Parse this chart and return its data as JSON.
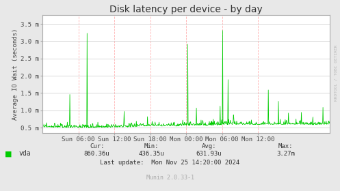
{
  "title": "Disk latency per device - by day",
  "ylabel": "Average IO Wait (seconds)",
  "bg_color": "#e8e8e8",
  "plot_bg_color": "#ffffff",
  "line_color": "#00cc00",
  "grid_color_h": "#cccccc",
  "grid_color_v": "#ffaaaa",
  "border_color": "#aaaaaa",
  "x_tick_labels": [
    "Sun 06:00",
    "Sun 12:00",
    "Sun 18:00",
    "Mon 00:00",
    "Mon 06:00",
    "Mon 12:00"
  ],
  "x_tick_positions": [
    0.125,
    0.25,
    0.375,
    0.5,
    0.625,
    0.75
  ],
  "y_tick_labels": [
    "0.5 m",
    "1.0 m",
    "1.5 m",
    "2.0 m",
    "2.5 m",
    "3.0 m",
    "3.5 m"
  ],
  "y_tick_values": [
    0.5,
    1.0,
    1.5,
    2.0,
    2.5,
    3.0,
    3.5
  ],
  "ylim": [
    0.35,
    3.75
  ],
  "legend_label": "vda",
  "legend_color": "#00cc00",
  "cur_label": "Cur:",
  "cur_value": "860.36u",
  "min_label": "Min:",
  "min_value": "436.35u",
  "avg_label": "Avg:",
  "avg_value": "631.93u",
  "max_label": "Max:",
  "max_value": "3.27m",
  "last_update": "Last update:  Mon Nov 25 14:20:00 2024",
  "munin_version": "Munin 2.0.33-1",
  "rrdtool_label": "RRDTOOL / TOBI OETIKER",
  "title_fontsize": 10,
  "axis_fontsize": 6.5,
  "tick_fontsize": 6.5,
  "footer_fontsize": 6.5
}
